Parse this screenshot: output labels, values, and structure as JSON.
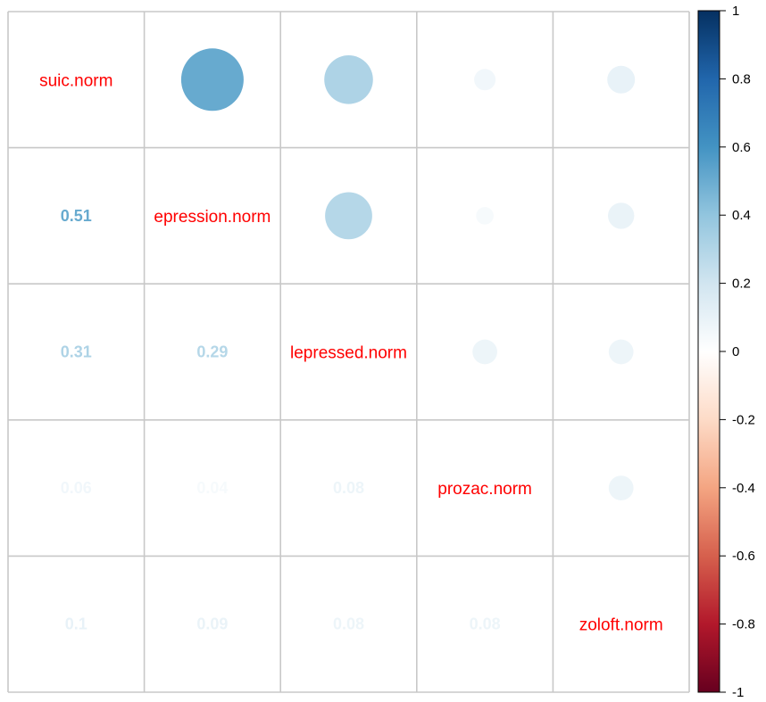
{
  "chart_data": {
    "type": "heatmap",
    "variables": [
      "suic.norm",
      "depression.norm",
      "depressed.norm",
      "prozac.norm",
      "zoloft.norm"
    ],
    "displayed_labels": [
      "suic.norm",
      "epression.norm",
      "lepressed.norm",
      "prozac.norm",
      "zoloft.norm"
    ],
    "matrix": [
      [
        1.0,
        0.51,
        0.31,
        0.06,
        0.1
      ],
      [
        0.51,
        1.0,
        0.29,
        0.04,
        0.09
      ],
      [
        0.31,
        0.29,
        1.0,
        0.08,
        0.08
      ],
      [
        0.06,
        0.04,
        0.08,
        1.0,
        0.08
      ],
      [
        0.1,
        0.09,
        0.08,
        0.08,
        1.0
      ]
    ],
    "lower_triangle": [
      {
        "row": 1,
        "col": 0,
        "label": "0.51"
      },
      {
        "row": 2,
        "col": 0,
        "label": "0.31"
      },
      {
        "row": 2,
        "col": 1,
        "label": "0.29"
      },
      {
        "row": 3,
        "col": 0,
        "label": "0.06"
      },
      {
        "row": 3,
        "col": 1,
        "label": "0.04"
      },
      {
        "row": 3,
        "col": 2,
        "label": "0.08"
      },
      {
        "row": 4,
        "col": 0,
        "label": "0.1"
      },
      {
        "row": 4,
        "col": 1,
        "label": "0.09"
      },
      {
        "row": 4,
        "col": 2,
        "label": "0.08"
      },
      {
        "row": 4,
        "col": 3,
        "label": "0.08"
      }
    ],
    "upper_method": "circle",
    "lower_method": "number",
    "colorbar": {
      "range": [
        -1,
        1
      ],
      "ticks": [
        "1",
        "0.8",
        "0.6",
        "0.4",
        "0.2",
        "0",
        "-0.2",
        "-0.4",
        "-0.6",
        "-0.8",
        "-1"
      ],
      "tick_values": [
        1,
        0.8,
        0.6,
        0.4,
        0.2,
        0,
        -0.2,
        -0.4,
        -0.6,
        -0.8,
        -1
      ],
      "palette": [
        "#67001F",
        "#B2182B",
        "#D6604D",
        "#F4A582",
        "#FDDBC7",
        "#FFFFFF",
        "#D1E5F0",
        "#92C5DE",
        "#4393C3",
        "#2166AC",
        "#053061"
      ]
    },
    "label_color": "#FF0000",
    "grid": true
  }
}
